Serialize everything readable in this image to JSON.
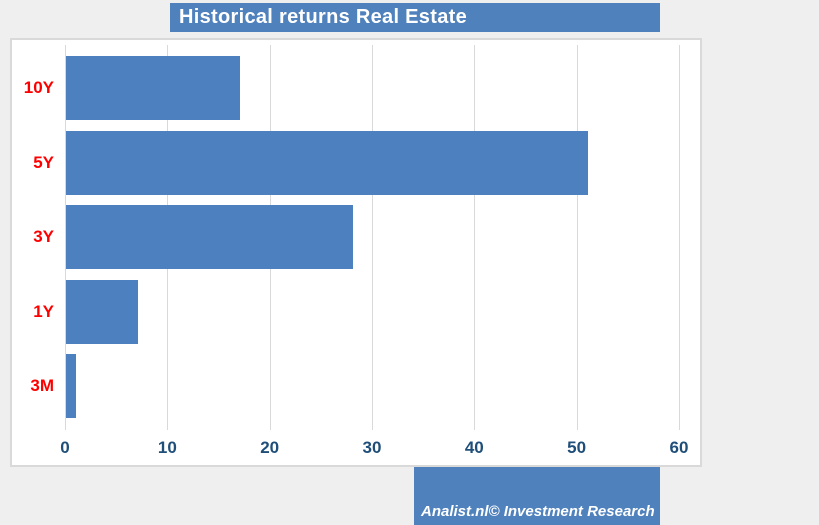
{
  "page": {
    "title": "Historical returns Real Estate",
    "credit": "Analist.nl© Investment Research"
  },
  "colors": {
    "banner_blue": "#4f81bd",
    "bar_blue": "#4d80be",
    "category_label_red": "#ff0000",
    "tick_label_navy": "#1f4e79",
    "gridline_gray": "#d9d9d9",
    "plot_background": "#ffffff",
    "page_background": "#efefef"
  },
  "chart_data": {
    "type": "bar",
    "orientation": "horizontal",
    "title": "Historical returns Real Estate",
    "categories": [
      "10Y",
      "5Y",
      "3Y",
      "1Y",
      "3M"
    ],
    "values": [
      17,
      51,
      28,
      7,
      1
    ],
    "xlabel": "",
    "ylabel": "",
    "x_ticks": [
      0,
      10,
      20,
      30,
      40,
      50,
      60
    ],
    "xlim": [
      0,
      62
    ],
    "grid": "vertical-gridlines",
    "legend": "none",
    "category_label_color": "#ff0000",
    "tick_label_color": "#1f4e79",
    "bar_color": "#4d80be"
  }
}
